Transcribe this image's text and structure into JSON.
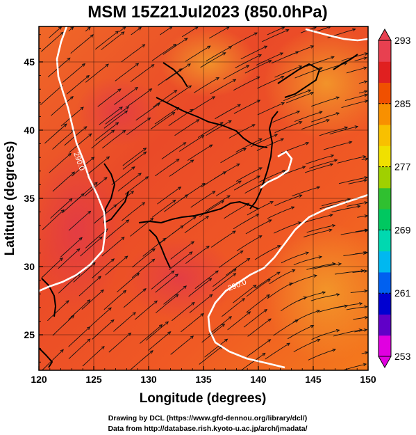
{
  "title": "MSM 15Z21Jul2023 (850.0hPa)",
  "xlabel": "Longitude (degrees)",
  "ylabel": "Latitude  (degrees)",
  "footer": {
    "line1": "Drawing by DCL (https://www.gfd-dennou.org/library/dcl/)",
    "line2": "Data from http://database.rish.kyoto-u.ac.jp/arch/jmadata/"
  },
  "map": {
    "lon_range": [
      120,
      150
    ],
    "lat_range": [
      22.4,
      47.6
    ],
    "x_ticks": [
      "120",
      "125",
      "130",
      "135",
      "140",
      "145",
      "150"
    ],
    "y_ticks": [
      "25",
      "30",
      "35",
      "40",
      "45"
    ],
    "contour_labels": [
      "290.0",
      "290.0"
    ]
  },
  "colorbar": {
    "min": 253,
    "max": 293,
    "labels": [
      "293",
      "285",
      "277",
      "269",
      "261",
      "253"
    ],
    "colors": [
      "#e000e0",
      "#6000c8",
      "#0000d0",
      "#0060f0",
      "#00b8f0",
      "#00d8b0",
      "#00c860",
      "#30c030",
      "#a0d000",
      "#f0e000",
      "#f8c000",
      "#f89000",
      "#f05000",
      "#e02020",
      "#e84050"
    ]
  }
}
